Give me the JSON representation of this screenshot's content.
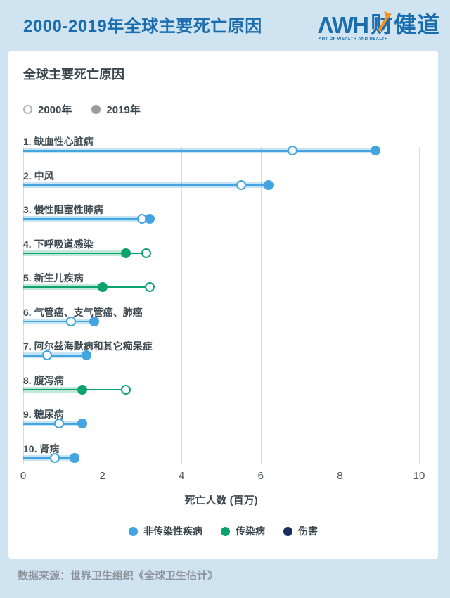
{
  "header": {
    "title": "2000-2019年全球主要死亡原因",
    "logo": {
      "awh": "ΛWH",
      "brand": "财健道",
      "tagline": "ART OF WEALTH AND HEALTH",
      "arrow_color": "#f6921e",
      "blue": "#1b6dad"
    }
  },
  "chart": {
    "title": "全球主要死亡原因",
    "xlabel": "死亡人数 (百万)",
    "year_legend": [
      {
        "label": "2000年",
        "variant": "open"
      },
      {
        "label": "2019年",
        "variant": "filled"
      }
    ],
    "group_legend": [
      {
        "label": "非传染性疾病",
        "color": "#42a4e0"
      },
      {
        "label": "传染病",
        "color": "#0ca26d"
      },
      {
        "label": "伤害",
        "color": "#1b2f5e"
      }
    ]
  },
  "chart_data": {
    "type": "dumbbell",
    "title": "全球主要死亡原因",
    "xlabel": "死亡人数 (百万)",
    "xlim": [
      0,
      10
    ],
    "x_ticks": [
      0,
      2,
      4,
      6,
      8,
      10
    ],
    "grid": true,
    "series_names": [
      "2000年",
      "2019年"
    ],
    "rows": [
      {
        "label": "1. 缺血性心脏病",
        "group": "非传染性疾病",
        "v2000": 6.8,
        "v2019": 8.9,
        "color": "#42a4e0",
        "band": "rgba(66,164,224,0.30)"
      },
      {
        "label": "2. 中风",
        "group": "非传染性疾病",
        "v2000": 5.5,
        "v2019": 6.2,
        "color": "#42a4e0",
        "band": "rgba(66,164,224,0.30)"
      },
      {
        "label": "3. 慢性阻塞性肺病",
        "group": "非传染性疾病",
        "v2000": 3.0,
        "v2019": 3.2,
        "color": "#42a4e0",
        "band": "rgba(66,164,224,0.30)"
      },
      {
        "label": "4. 下呼吸道感染",
        "group": "传染病",
        "v2000": 3.1,
        "v2019": 2.6,
        "color": "#0ca26d",
        "band": "rgba(12,162,109,0.25)"
      },
      {
        "label": "5. 新生儿疾病",
        "group": "传染病",
        "v2000": 3.2,
        "v2019": 2.0,
        "color": "#0ca26d",
        "band": "rgba(12,162,109,0.25)"
      },
      {
        "label": "6. 气管癌、支气管癌、肺癌",
        "group": "非传染性疾病",
        "v2000": 1.2,
        "v2019": 1.8,
        "color": "#42a4e0",
        "band": "rgba(66,164,224,0.30)"
      },
      {
        "label": "7. 阿尔兹海默病和其它痴呆症",
        "group": "非传染性疾病",
        "v2000": 0.6,
        "v2019": 1.6,
        "color": "#42a4e0",
        "band": "rgba(66,164,224,0.30)"
      },
      {
        "label": "8. 腹泻病",
        "group": "传染病",
        "v2000": 2.6,
        "v2019": 1.5,
        "color": "#0ca26d",
        "band": "rgba(12,162,109,0.25)"
      },
      {
        "label": "9. 糖尿病",
        "group": "非传染性疾病",
        "v2000": 0.9,
        "v2019": 1.5,
        "color": "#42a4e0",
        "band": "rgba(66,164,224,0.30)"
      },
      {
        "label": "10. 肾病",
        "group": "非传染性疾病",
        "v2000": 0.8,
        "v2019": 1.3,
        "color": "#42a4e0",
        "band": "rgba(66,164,224,0.30)"
      }
    ]
  },
  "colors": {
    "background": "#cfe3f1",
    "card": "#ffffff",
    "ncd_blue": "#42a4e0",
    "communicable_green": "#0ca26d",
    "injury_navy": "#1b2f5e",
    "legend_gray": "#9c9c9c",
    "gridline": "#d9dcdf"
  },
  "source": "数据来源：世界卫生组织《全球卫生估计》"
}
